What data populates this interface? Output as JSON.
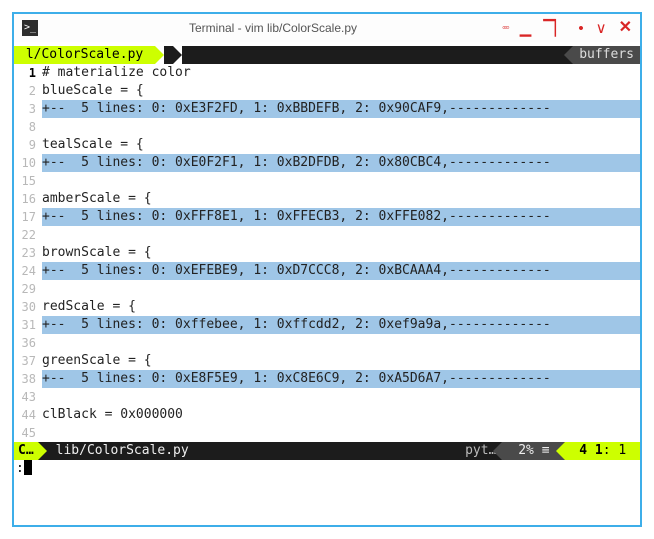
{
  "window": {
    "title": "Terminal - vim lib/ColorScale.py",
    "icon": "terminal-icon"
  },
  "colors": {
    "accent": "#cdff00",
    "border": "#3daee9",
    "fold_bg": "#9fc6e7",
    "gutter": "#b8b8b8",
    "dark": "#1c1c1c",
    "win_control": "#d92626"
  },
  "bufferline": {
    "active_tab": "l/ColorScale.py",
    "right_label": "buffers"
  },
  "lines": [
    {
      "num": "1",
      "cur": true,
      "hl": false,
      "text": "# materialize color"
    },
    {
      "num": "2",
      "cur": false,
      "hl": false,
      "text": "blueScale = {"
    },
    {
      "num": "3",
      "cur": false,
      "hl": true,
      "text": "+--  5 lines: 0: 0xE3F2FD, 1: 0xBBDEFB, 2: 0x90CAF9,-------------"
    },
    {
      "num": "8",
      "cur": false,
      "hl": false,
      "text": ""
    },
    {
      "num": "9",
      "cur": false,
      "hl": false,
      "text": "tealScale = {"
    },
    {
      "num": "10",
      "cur": false,
      "hl": true,
      "text": "+--  5 lines: 0: 0xE0F2F1, 1: 0xB2DFDB, 2: 0x80CBC4,-------------"
    },
    {
      "num": "15",
      "cur": false,
      "hl": false,
      "text": ""
    },
    {
      "num": "16",
      "cur": false,
      "hl": false,
      "text": "amberScale = {"
    },
    {
      "num": "17",
      "cur": false,
      "hl": true,
      "text": "+--  5 lines: 0: 0xFFF8E1, 1: 0xFFECB3, 2: 0xFFE082,-------------"
    },
    {
      "num": "22",
      "cur": false,
      "hl": false,
      "text": ""
    },
    {
      "num": "23",
      "cur": false,
      "hl": false,
      "text": "brownScale = {"
    },
    {
      "num": "24",
      "cur": false,
      "hl": true,
      "text": "+--  5 lines: 0: 0xEFEBE9, 1: 0xD7CCC8, 2: 0xBCAAA4,-------------"
    },
    {
      "num": "29",
      "cur": false,
      "hl": false,
      "text": ""
    },
    {
      "num": "30",
      "cur": false,
      "hl": false,
      "text": "redScale = {"
    },
    {
      "num": "31",
      "cur": false,
      "hl": true,
      "text": "+--  5 lines: 0: 0xffebee, 1: 0xffcdd2, 2: 0xef9a9a,-------------"
    },
    {
      "num": "36",
      "cur": false,
      "hl": false,
      "text": ""
    },
    {
      "num": "37",
      "cur": false,
      "hl": false,
      "text": "greenScale = {"
    },
    {
      "num": "38",
      "cur": false,
      "hl": true,
      "text": "+--  5 lines: 0: 0xE8F5E9, 1: 0xC8E6C9, 2: 0xA5D6A7,-------------"
    },
    {
      "num": "43",
      "cur": false,
      "hl": false,
      "text": ""
    },
    {
      "num": "44",
      "cur": false,
      "hl": false,
      "text": "clBlack = 0x000000"
    },
    {
      "num": "45",
      "cur": false,
      "hl": false,
      "text": ""
    }
  ],
  "statusline": {
    "mode": "C…",
    "file": "lib/ColorScale.py",
    "filetype": "pyt…",
    "percent": "2% ≡",
    "line": "4 1",
    "col": ": 1"
  },
  "cmdline": {
    "prompt": ":"
  }
}
